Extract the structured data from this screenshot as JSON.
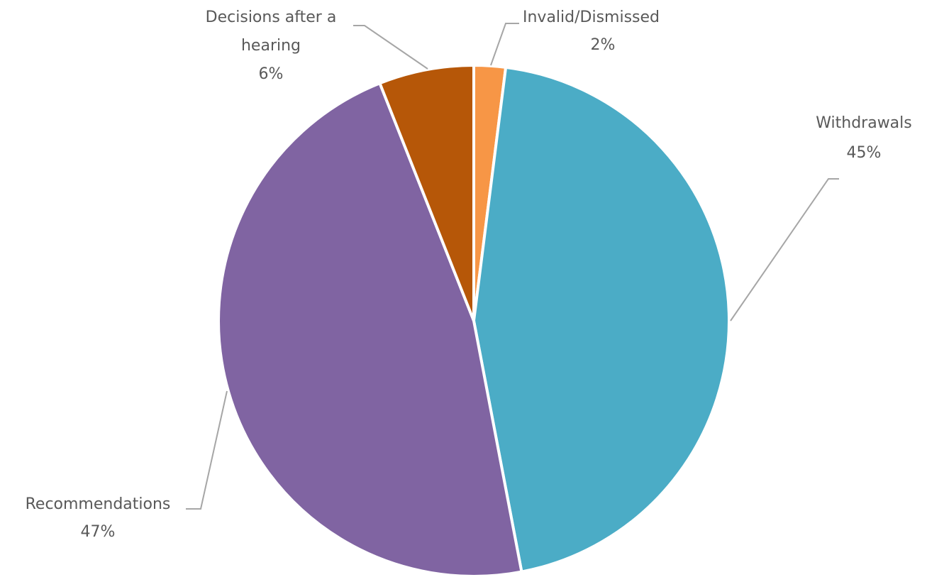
{
  "chart_data": {
    "type": "pie",
    "title": "",
    "slices": [
      {
        "label": "Invalid/Dismissed",
        "value": 2,
        "value_label": "2%",
        "color": "#F79646"
      },
      {
        "label": "Withdrawals",
        "value": 45,
        "value_label": "45%",
        "color": "#4BACC6"
      },
      {
        "label": "Recommendations",
        "value": 47,
        "value_label": "47%",
        "color": "#8064A2"
      },
      {
        "label": "Decisions after a hearing",
        "value": 6,
        "value_label": "6%",
        "color": "#B65708"
      }
    ],
    "start_angle": "top (12 o'clock)",
    "direction": "clockwise",
    "slice_border_color": "#FFFFFF",
    "leader_line_color": "#A6A6A6",
    "label_color": "#595959",
    "legend": "none"
  }
}
